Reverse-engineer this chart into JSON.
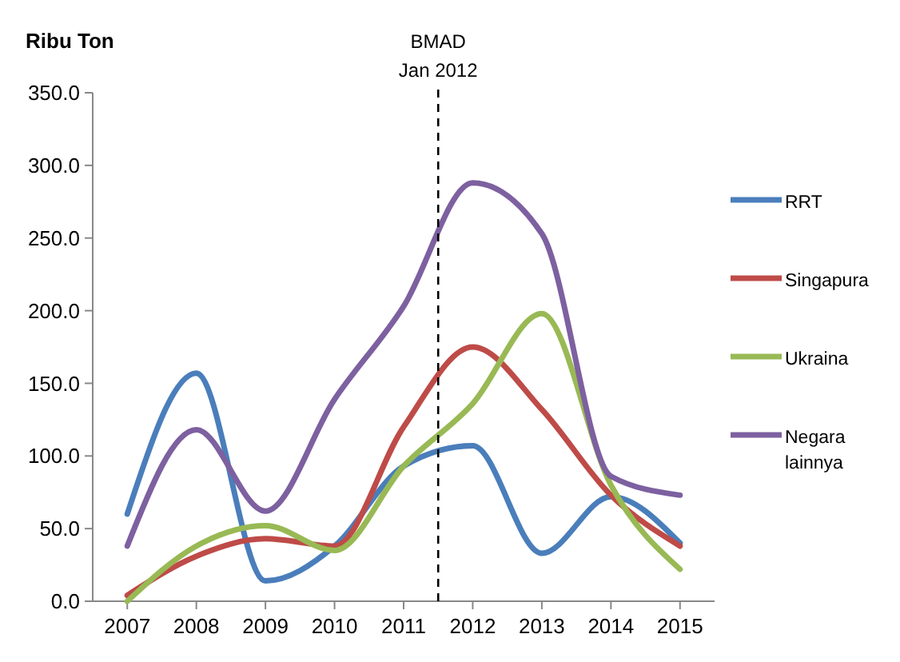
{
  "chart_data": {
    "type": "line",
    "ylabel": "Ribu Ton",
    "x": [
      2007,
      2008,
      2009,
      2010,
      2011,
      2012,
      2013,
      2014,
      2015
    ],
    "xlim": [
      2006.5,
      2015.5
    ],
    "xticks": [
      2007,
      2008,
      2009,
      2010,
      2011,
      2012,
      2013,
      2014,
      2015
    ],
    "ylim": [
      0,
      350
    ],
    "yticks": [
      {
        "value": 0,
        "label": "0.0"
      },
      {
        "value": 50,
        "label": "50.0"
      },
      {
        "value": 100,
        "label": "100.0"
      },
      {
        "value": 150,
        "label": "150.0"
      },
      {
        "value": 200,
        "label": "200.0"
      },
      {
        "value": 250,
        "label": "250.0"
      },
      {
        "value": 300,
        "label": "300.0"
      },
      {
        "value": 350,
        "label": "350.0"
      }
    ],
    "series": [
      {
        "name": "RRT",
        "color": "#4a7ebb",
        "values": [
          60,
          157,
          14,
          38,
          93,
          107,
          33,
          72,
          40
        ]
      },
      {
        "name": "Singapura",
        "color": "#be4b48",
        "values": [
          4,
          31,
          43,
          38,
          120,
          175,
          132,
          73,
          38
        ]
      },
      {
        "name": "Ukraina",
        "color": "#98b954",
        "values": [
          0,
          38,
          52,
          35,
          93,
          136,
          198,
          80,
          22
        ]
      },
      {
        "name": "Negara lainnya",
        "color": "#7d60a0",
        "values": [
          38,
          118,
          62,
          139,
          203,
          288,
          253,
          86,
          73
        ]
      }
    ],
    "ref_lines": [
      {
        "axis": "x",
        "value": 2011.5,
        "label": "BMAD\nJan 2012",
        "color": "#000000",
        "line_style": "dashed"
      }
    ],
    "grid": false,
    "legend": "right",
    "marker": "none",
    "line_style": "solid"
  }
}
